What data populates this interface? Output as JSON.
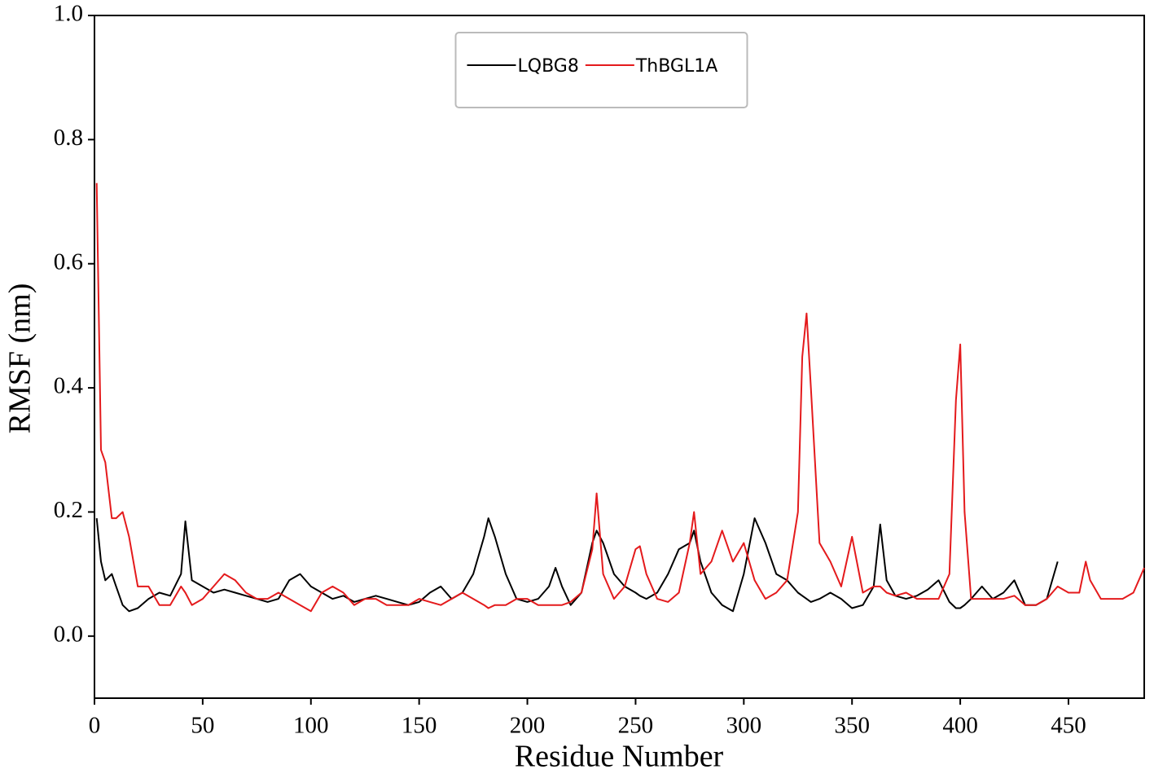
{
  "chart_data": {
    "type": "line",
    "xlabel": "Residue  Number",
    "ylabel": "RMSF (nm)",
    "x": [
      1,
      3,
      5,
      8,
      10,
      13,
      16,
      20,
      25,
      30,
      35,
      40,
      42,
      45,
      50,
      55,
      60,
      65,
      70,
      75,
      80,
      85,
      90,
      95,
      100,
      105,
      110,
      115,
      120,
      125,
      130,
      135,
      140,
      145,
      150,
      155,
      160,
      165,
      170,
      175,
      180,
      182,
      185,
      190,
      195,
      200,
      205,
      210,
      213,
      216,
      220,
      225,
      230,
      232,
      235,
      240,
      245,
      250,
      252,
      255,
      260,
      265,
      270,
      275,
      277,
      280,
      285,
      290,
      295,
      300,
      305,
      310,
      315,
      320,
      325,
      327,
      329,
      331,
      335,
      340,
      345,
      350,
      355,
      360,
      363,
      366,
      370,
      375,
      380,
      385,
      390,
      395,
      398,
      400,
      402,
      405,
      410,
      415,
      420,
      425,
      430,
      435,
      440,
      445,
      450,
      455,
      458,
      460,
      465,
      470,
      475,
      480,
      485
    ],
    "series": [
      {
        "name": "LQBG8",
        "color": "#000000",
        "values": [
          0.19,
          0.12,
          0.09,
          0.1,
          0.08,
          0.05,
          0.04,
          0.045,
          0.06,
          0.07,
          0.065,
          0.1,
          0.185,
          0.09,
          0.08,
          0.07,
          0.075,
          0.07,
          0.065,
          0.06,
          0.055,
          0.06,
          0.09,
          0.1,
          0.08,
          0.07,
          0.06,
          0.065,
          0.055,
          0.06,
          0.065,
          0.06,
          0.055,
          0.05,
          0.055,
          0.07,
          0.08,
          0.06,
          0.07,
          0.1,
          0.16,
          0.19,
          0.16,
          0.1,
          0.06,
          0.055,
          0.06,
          0.08,
          0.11,
          0.08,
          0.05,
          0.07,
          0.15,
          0.17,
          0.15,
          0.1,
          0.08,
          0.07,
          0.065,
          0.06,
          0.07,
          0.1,
          0.14,
          0.15,
          0.17,
          0.12,
          0.07,
          0.05,
          0.04,
          0.1,
          0.19,
          0.15,
          0.1,
          0.09,
          0.07,
          0.065,
          0.06,
          0.055,
          0.06,
          0.07,
          0.06,
          0.045,
          0.05,
          0.08,
          0.18,
          0.09,
          0.065,
          0.06,
          0.065,
          0.075,
          0.09,
          0.055,
          0.045,
          0.045,
          0.05,
          0.06,
          0.08,
          0.06,
          0.07,
          0.09,
          0.05,
          0.05,
          0.06,
          0.12,
          null,
          null,
          null,
          null,
          null,
          null,
          null,
          null,
          null
        ]
      },
      {
        "name": "ThBGL1A",
        "color": "#e41a1c",
        "values": [
          0.73,
          0.3,
          0.28,
          0.19,
          0.19,
          0.2,
          0.16,
          0.08,
          0.08,
          0.05,
          0.05,
          0.08,
          0.07,
          0.05,
          0.06,
          0.08,
          0.1,
          0.09,
          0.07,
          0.06,
          0.06,
          0.07,
          0.06,
          0.05,
          0.04,
          0.07,
          0.08,
          0.07,
          0.05,
          0.06,
          0.06,
          0.05,
          0.05,
          0.05,
          0.06,
          0.055,
          0.05,
          0.06,
          0.07,
          0.06,
          0.05,
          0.045,
          0.05,
          0.05,
          0.06,
          0.06,
          0.05,
          0.05,
          0.05,
          0.05,
          0.055,
          0.07,
          0.14,
          0.23,
          0.1,
          0.06,
          0.08,
          0.14,
          0.145,
          0.1,
          0.06,
          0.055,
          0.07,
          0.15,
          0.2,
          0.1,
          0.12,
          0.17,
          0.12,
          0.15,
          0.09,
          0.06,
          0.07,
          0.09,
          0.2,
          0.45,
          0.52,
          0.4,
          0.15,
          0.12,
          0.08,
          0.16,
          0.07,
          0.08,
          0.08,
          0.07,
          0.065,
          0.07,
          0.06,
          0.06,
          0.06,
          0.1,
          0.38,
          0.47,
          0.2,
          0.06,
          0.06,
          0.06,
          0.06,
          0.065,
          0.05,
          0.05,
          0.06,
          0.08,
          0.07,
          0.07,
          0.12,
          0.09,
          0.06,
          0.06,
          0.06,
          0.07,
          0.11
        ]
      }
    ],
    "xlim": [
      0,
      485
    ],
    "ylim": [
      -0.1,
      1.0
    ],
    "xticks": [
      0,
      50,
      100,
      150,
      200,
      250,
      300,
      350,
      400,
      450
    ],
    "yticks": [
      {
        "value": 0,
        "label": "0.0"
      },
      0.2,
      0.4,
      0.6,
      0.8,
      {
        "value": 1,
        "label": "1.0"
      }
    ],
    "grid": false,
    "legend": "upper center"
  }
}
